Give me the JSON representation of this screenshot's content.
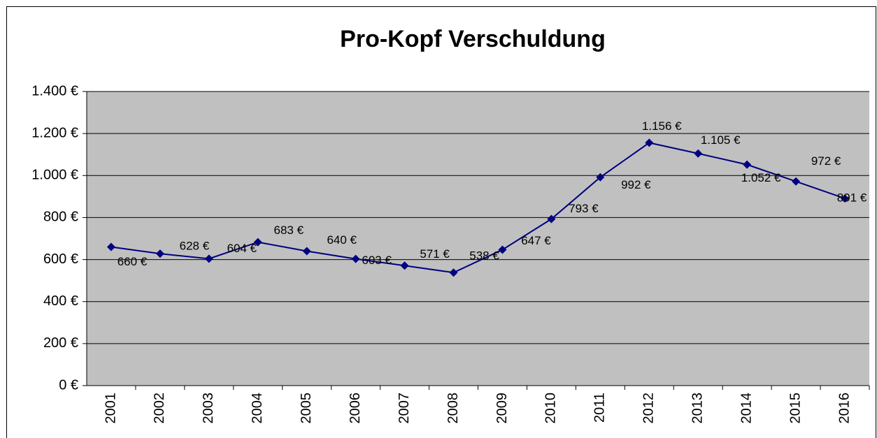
{
  "chart_data": {
    "type": "line",
    "title": "Pro-Kopf Verschuldung",
    "categories": [
      "2001",
      "2002",
      "2003",
      "2004",
      "2005",
      "2006",
      "2007",
      "2008",
      "2009",
      "2010",
      "2011",
      "2012",
      "2013",
      "2014",
      "2015",
      "2016"
    ],
    "series": [
      {
        "name": "Pro-Kopf Verschuldung",
        "color": "#000080",
        "values": [
          660,
          628,
          604,
          683,
          640,
          603,
          571,
          538,
          647,
          793,
          992,
          1156,
          1105,
          1052,
          972,
          891
        ],
        "value_labels": [
          "660 €",
          "628 €",
          "604 €",
          "683 €",
          "640 €",
          "603 €",
          "571 €",
          "538 €",
          "647 €",
          "793 €",
          "992 €",
          "1.156 €",
          "1.105 €",
          "1.052 €",
          "972 €",
          "891 €"
        ]
      }
    ],
    "ylim": [
      0,
      1400
    ],
    "yticks": [
      {
        "value": 0,
        "label": "0 €"
      },
      {
        "value": 200,
        "label": "200 €"
      },
      {
        "value": 400,
        "label": "400 €"
      },
      {
        "value": 600,
        "label": "600 €"
      },
      {
        "value": 800,
        "label": "800 €"
      },
      {
        "value": 1000,
        "label": "1.000 €"
      },
      {
        "value": 1200,
        "label": "1.200 €"
      },
      {
        "value": 1400,
        "label": "1.400 €"
      }
    ],
    "grid": true,
    "plot_background": "#c0c0c0"
  }
}
